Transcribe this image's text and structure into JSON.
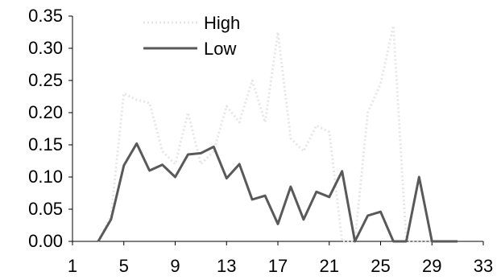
{
  "chart_data": {
    "type": "line",
    "title": "",
    "xlabel": "",
    "ylabel": "",
    "xlim": [
      1,
      33
    ],
    "ylim": [
      0,
      0.35
    ],
    "x_ticks": [
      "1",
      "5",
      "9",
      "13",
      "17",
      "21",
      "25",
      "29",
      "33"
    ],
    "y_ticks": [
      "0.00",
      "0.05",
      "0.10",
      "0.15",
      "0.20",
      "0.25",
      "0.30",
      "0.35"
    ],
    "grid": false,
    "legend_position": "top-left",
    "x": [
      3,
      4,
      5,
      6,
      7,
      8,
      9,
      10,
      11,
      12,
      13,
      14,
      15,
      16,
      17,
      18,
      19,
      20,
      21,
      22,
      23,
      24,
      25,
      26,
      27,
      28,
      29,
      30,
      31
    ],
    "series": [
      {
        "name": "High",
        "color": "#e6e6e6",
        "style": "dotted",
        "values": [
          0.0,
          0.04,
          0.23,
          0.22,
          0.215,
          0.14,
          0.12,
          0.2,
          0.12,
          0.14,
          0.21,
          0.185,
          0.25,
          0.185,
          0.325,
          0.16,
          0.14,
          0.18,
          0.17,
          0.0,
          0.0,
          0.2,
          0.245,
          0.335,
          0.0,
          0.0,
          0.0,
          0.0,
          0.0
        ]
      },
      {
        "name": "Low",
        "color": "#595959",
        "style": "solid",
        "values": [
          0.0,
          0.034,
          0.118,
          0.152,
          0.11,
          0.119,
          0.1,
          0.135,
          0.137,
          0.147,
          0.098,
          0.12,
          0.065,
          0.071,
          0.027,
          0.085,
          0.034,
          0.077,
          0.069,
          0.109,
          0.0,
          0.04,
          0.046,
          0.0,
          0.0,
          0.1,
          0.0,
          0.0,
          0.0
        ]
      }
    ]
  }
}
